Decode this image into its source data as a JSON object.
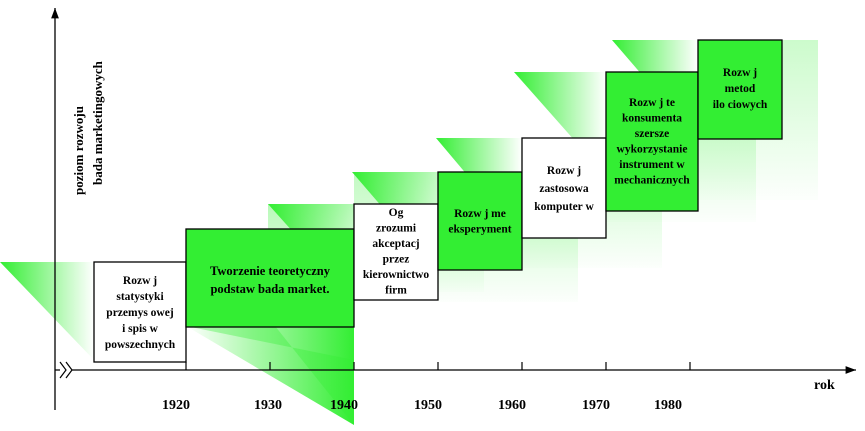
{
  "y_axis_label": [
    "poziom rozwoju",
    "bada   marketingowych"
  ],
  "x_axis_label": "rok",
  "years": [
    "1920",
    "1930",
    "1940",
    "1950",
    "1960",
    "1970",
    "1980"
  ],
  "stages": [
    {
      "lines": [
        "Rozw  j",
        "statystyki",
        "przemys owej",
        "i spis  w",
        "powszechnych"
      ]
    },
    {
      "lines": [
        "Tworzenie teoretyczny",
        "podstaw bada   market."
      ]
    },
    {
      "lines": [
        "Og",
        "zrozumi",
        "akceptacj",
        "przez",
        "kierownictwo",
        "firm"
      ]
    },
    {
      "lines": [
        "Rozw  j me",
        "eksperyment"
      ]
    },
    {
      "lines": [
        "Rozw  j",
        "zastosowa",
        "komputer  w"
      ]
    },
    {
      "lines": [
        "Rozw  j te",
        "konsumenta",
        "szersze",
        "wykorzystanie",
        "instrument  w",
        "mechanicznych"
      ]
    },
    {
      "lines": [
        "Rozw  j",
        "metod",
        "ilo ciowych"
      ]
    }
  ],
  "colors": {
    "green": "#33ee33",
    "axis": "#000000",
    "box_border": "#000000"
  }
}
